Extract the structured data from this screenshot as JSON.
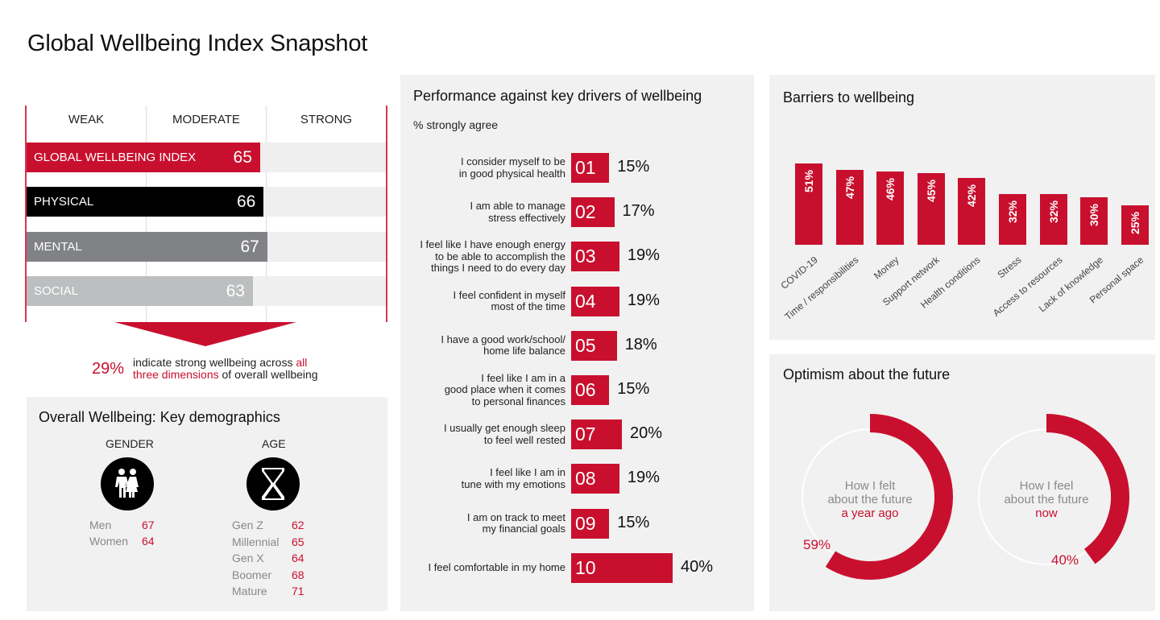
{
  "page_title": "Global Wellbeing Index Snapshot",
  "colors": {
    "accent": "#c8102e",
    "black": "#000000",
    "dark_grey": "#808285",
    "light_grey": "#bcbec0",
    "panel": "#f1f1f1"
  },
  "index_chart": {
    "columns": [
      "WEAK",
      "MODERATE",
      "STRONG"
    ],
    "scale_max": 100,
    "bars": [
      {
        "label": "GLOBAL WELLBEING INDEX",
        "value": 65,
        "color": "#c8102e",
        "text_color": "#ffffff"
      },
      {
        "label": "PHYSICAL",
        "value": 66,
        "color": "#000000",
        "text_color": "#ffffff"
      },
      {
        "label": "MENTAL",
        "value": 67,
        "color": "#808285",
        "text_color": "#ffffff"
      },
      {
        "label": "SOCIAL",
        "value": 63,
        "color": "#bcbec0",
        "text_color": "#ffffff"
      }
    ],
    "stat_value": "29%",
    "stat_text_1": "indicate strong wellbeing across ",
    "stat_text_highlight_1": "all",
    "stat_text_highlight_2": "three dimensions",
    "stat_text_2": " of overall wellbeing"
  },
  "demographics": {
    "title": "Overall Wellbeing: Key demographics",
    "gender": {
      "heading": "GENDER",
      "icon": "couple-icon",
      "rows": [
        {
          "label": "Men",
          "value": "67"
        },
        {
          "label": "Women",
          "value": "64"
        }
      ]
    },
    "age": {
      "heading": "AGE",
      "icon": "hourglass-icon",
      "rows": [
        {
          "label": "Gen Z",
          "value": "62"
        },
        {
          "label": "Millennial",
          "value": "65"
        },
        {
          "label": "Gen X",
          "value": "64"
        },
        {
          "label": "Boomer",
          "value": "68"
        },
        {
          "label": "Mature",
          "value": "71"
        }
      ]
    }
  },
  "chart_data": [
    {
      "type": "bar",
      "orientation": "horizontal",
      "title": "Performance against key drivers of wellbeing",
      "subtitle": "% strongly agree",
      "categories": [
        [
          "I consider myself to be",
          "in good physical health"
        ],
        [
          "I am able to manage",
          "stress effectively"
        ],
        [
          "I feel like I have enough energy",
          "to be able to accomplish the",
          "things I need to do every day"
        ],
        [
          "I feel confident in myself",
          "most of the time"
        ],
        [
          "I have a good work/school/",
          "home life balance"
        ],
        [
          "I feel like I am in a",
          "good place when it comes",
          "to personal finances"
        ],
        [
          "I usually get enough sleep",
          "to feel well rested"
        ],
        [
          "I feel like I am in",
          "tune with my emotions"
        ],
        [
          "I am on track to meet",
          "my financial goals"
        ],
        [
          "I feel comfortable in my home"
        ]
      ],
      "numbers": [
        "01",
        "02",
        "03",
        "04",
        "05",
        "06",
        "07",
        "08",
        "09",
        "10"
      ],
      "values": [
        15,
        17,
        19,
        19,
        18,
        15,
        20,
        19,
        15,
        40
      ],
      "value_labels": [
        "15%",
        "17%",
        "19%",
        "19%",
        "18%",
        "15%",
        "20%",
        "19%",
        "15%",
        "40%"
      ],
      "xlim": [
        0,
        100
      ]
    },
    {
      "type": "bar",
      "orientation": "vertical",
      "title": "Barriers to wellbeing",
      "categories": [
        "COVID-19",
        "Time / responsibilities",
        "Money",
        "Support network",
        "Health conditions",
        "Stress",
        "Access to resources",
        "Lack of knowledge",
        "Personal space"
      ],
      "values": [
        51,
        47,
        46,
        45,
        42,
        32,
        32,
        30,
        25
      ],
      "value_labels": [
        "51%",
        "47%",
        "46%",
        "45%",
        "42%",
        "32%",
        "32%",
        "30%",
        "25%"
      ],
      "ylim": [
        0,
        60
      ]
    },
    {
      "type": "pie",
      "variant": "donut",
      "title": "Optimism about the future",
      "series": [
        {
          "name": "a year ago",
          "label_lines": [
            "How I felt",
            "about the future"
          ],
          "label_highlight": "a year ago",
          "value": 59,
          "value_label": "59%"
        },
        {
          "name": "now",
          "label_lines": [
            "How I feel",
            "about the future"
          ],
          "label_highlight": "now",
          "value": 40,
          "value_label": "40%"
        }
      ]
    }
  ]
}
